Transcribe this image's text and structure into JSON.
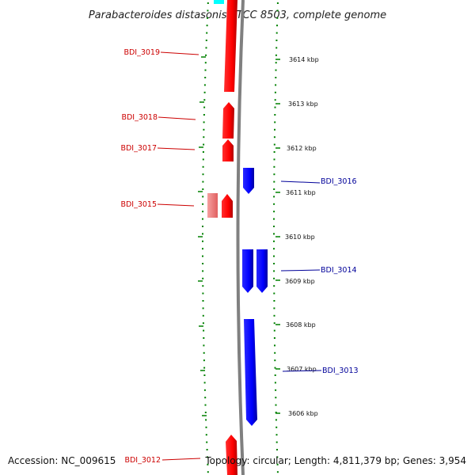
{
  "title": "Parabacteroides distasonis ATCC 8503, complete genome",
  "footer": {
    "accession": "Accession: NC_009615",
    "topology": "Topology: circular; Length: 4,811,379 bp; Genes: 3,954"
  },
  "colors": {
    "forward_gene": "#ff0000",
    "forward_gene_light": "#f08080",
    "reverse_gene": "#0000ff",
    "forward_label": "#cc0000",
    "reverse_label": "#000099",
    "backbone": "#808080",
    "tick": "#008000",
    "other_feature": "#00ffff"
  },
  "kbp_ticks": [
    {
      "label": "3614 kbp"
    },
    {
      "label": "3613 kbp"
    },
    {
      "label": "3612 kbp"
    },
    {
      "label": "3611 kbp"
    },
    {
      "label": "3610 kbp"
    },
    {
      "label": "3609 kbp"
    },
    {
      "label": "3608 kbp"
    },
    {
      "label": "3607 kbp"
    },
    {
      "label": "3606 kbp"
    }
  ],
  "genes": [
    {
      "id": "BDI_3019",
      "strand": "forward"
    },
    {
      "id": "BDI_3018",
      "strand": "forward"
    },
    {
      "id": "BDI_3017",
      "strand": "forward"
    },
    {
      "id": "BDI_3016",
      "strand": "reverse"
    },
    {
      "id": "BDI_3015",
      "strand": "forward"
    },
    {
      "id": "BDI_3014",
      "strand": "reverse"
    },
    {
      "id": "BDI_3013",
      "strand": "reverse"
    },
    {
      "id": "BDI_3012",
      "strand": "forward"
    }
  ]
}
